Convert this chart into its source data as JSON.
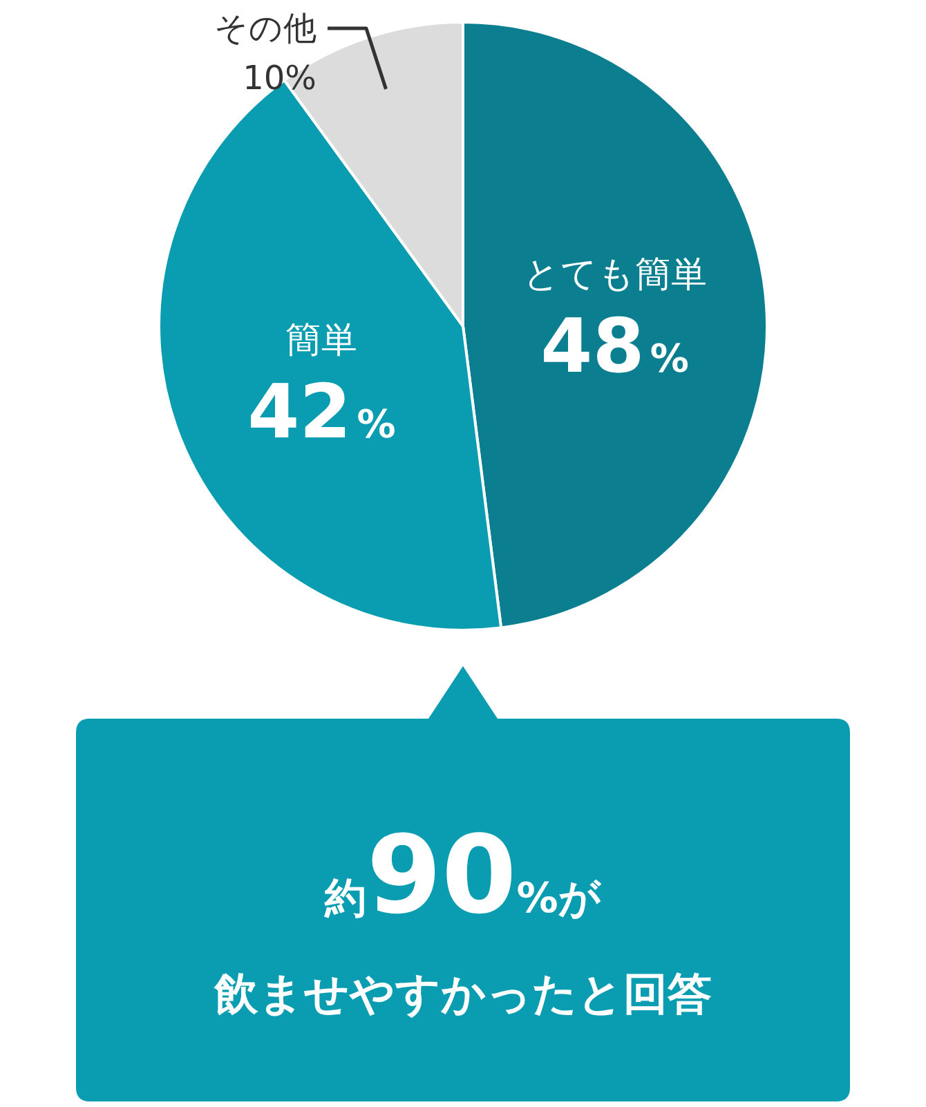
{
  "chart_data": {
    "type": "pie",
    "categories": [
      "とても簡単",
      "簡単",
      "その他"
    ],
    "values": [
      48,
      42,
      10
    ],
    "colors": [
      "#0b7f8f",
      "#0a9db1",
      "#dcdcdc"
    ],
    "value_labels": [
      "48%",
      "42%",
      "10%"
    ],
    "annotations": [
      "約90%が",
      "飲ませやすかったと回答"
    ]
  }
}
